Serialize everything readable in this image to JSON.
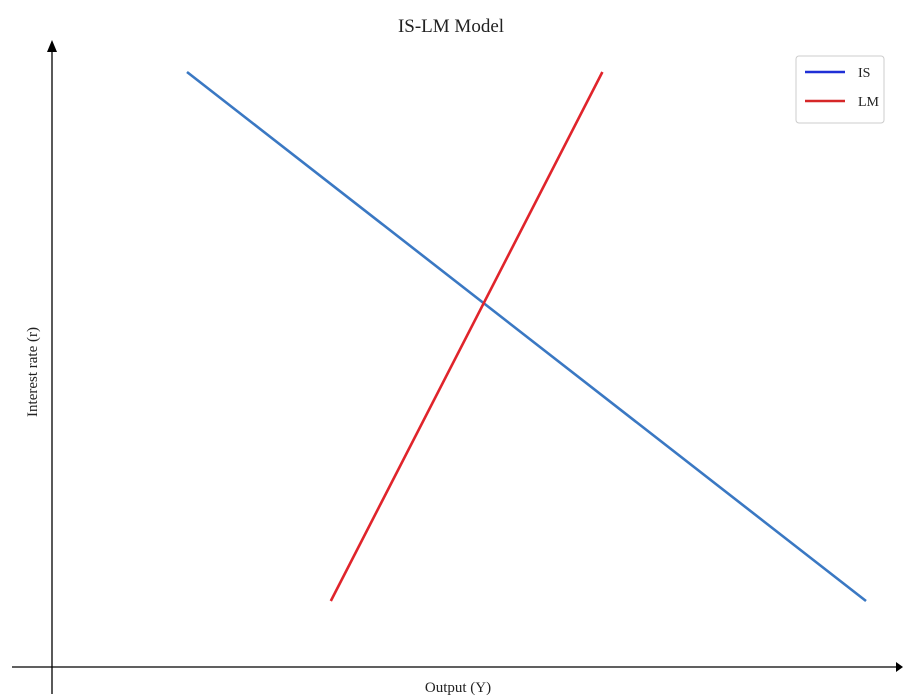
{
  "chart_data": {
    "type": "line",
    "title": "IS-LM Model",
    "xlabel": "Output (Y)",
    "ylabel": "Interest rate (r)",
    "xlim": [
      0,
      10
    ],
    "ylim": [
      0,
      10
    ],
    "grid": false,
    "axis_ticks": false,
    "legend_position": "top-right",
    "series": [
      {
        "name": "IS",
        "x": [
          1.5,
          10
        ],
        "y": [
          9,
          1
        ],
        "color": "#3a78c3"
      },
      {
        "name": "LM",
        "x": [
          3.3,
          6.7
        ],
        "y": [
          1,
          9
        ],
        "color": "#e0242b"
      }
    ]
  },
  "legend": {
    "items": [
      {
        "label": "IS",
        "color": "#1f2fd6"
      },
      {
        "label": "LM",
        "color": "#d62728"
      }
    ]
  }
}
